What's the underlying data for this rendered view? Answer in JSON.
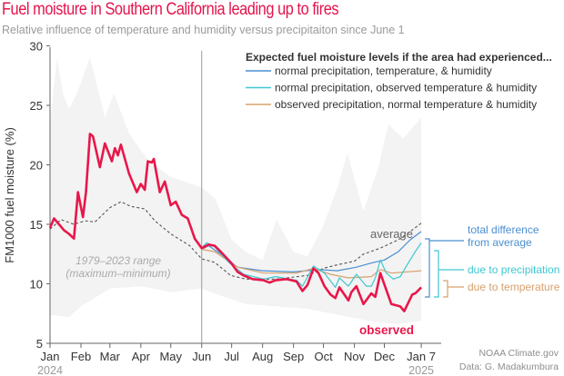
{
  "header": {
    "title": "Fuel moisture in Southern California leading up to fires",
    "subtitle": "Relative influence of temperature and humidity versus precipitaiton since June 1"
  },
  "credits": {
    "line1": "NOAA Climate.gov",
    "line2": "Data: G. Madakumbura"
  },
  "colors": {
    "observed": "#e8174a",
    "normal_all": "#4a8fd0",
    "normal_precip": "#3cc8d2",
    "normal_temp": "#d8a06c",
    "average": "#555555",
    "range": "#f3f3f3"
  },
  "chart_data": {
    "type": "line",
    "ylabel": "FM1000 fuel moisture (%)",
    "ylim": [
      5,
      30
    ],
    "yticks": [
      "5",
      "10",
      "15",
      "20",
      "25",
      "30"
    ],
    "xticks": [
      {
        "date": "2024-01-01",
        "label": "Jan"
      },
      {
        "date": "2024-02-01",
        "label": "Feb"
      },
      {
        "date": "2024-03-01",
        "label": "Mar"
      },
      {
        "date": "2024-04-01",
        "label": "Apr"
      },
      {
        "date": "2024-05-01",
        "label": "May"
      },
      {
        "date": "2024-06-01",
        "label": "Jun"
      },
      {
        "date": "2024-07-01",
        "label": "Jul"
      },
      {
        "date": "2024-08-01",
        "label": "Aug"
      },
      {
        "date": "2024-09-01",
        "label": "Sep"
      },
      {
        "date": "2024-10-01",
        "label": "Oct"
      },
      {
        "date": "2024-11-01",
        "label": "Nov"
      },
      {
        "date": "2024-12-01",
        "label": "Dec"
      },
      {
        "date": "2025-01-07",
        "label": "Jan 7"
      }
    ],
    "year_labels": {
      "start": "2024",
      "end": "2025"
    },
    "marker_date": "2024-06-01",
    "legend": {
      "title": "Expected fuel moisture levels if the area had experienced...",
      "position": "top-right",
      "items": [
        {
          "key": "normal_all",
          "label": "normal precipitation, temperature, & humidity"
        },
        {
          "key": "normal_precip",
          "label": "normal precipitation, observed temperature & humidity"
        },
        {
          "key": "normal_temp",
          "label": "observed precipitation, normal temperature & humidity"
        }
      ]
    },
    "annotations": {
      "range_label_1": "1979–2023 range",
      "range_label_2": "(maximum–minimum)",
      "average": "average",
      "observed": "observed",
      "total_1": "total difference",
      "total_2": "from average",
      "precip": "due to precipitation",
      "temp": "due to temperature"
    },
    "range": {
      "name": "1979–2023 range",
      "max": [
        [
          "2024-01-01",
          23.4
        ],
        [
          "2024-01-08",
          29
        ],
        [
          "2024-01-14",
          26
        ],
        [
          "2024-01-20",
          24.7
        ],
        [
          "2024-01-28",
          26
        ],
        [
          "2024-02-10",
          29
        ],
        [
          "2024-02-25",
          24
        ],
        [
          "2024-03-05",
          26
        ],
        [
          "2024-03-20",
          22.7
        ],
        [
          "2024-04-01",
          21.2
        ],
        [
          "2024-04-10",
          20.3
        ],
        [
          "2024-05-01",
          19
        ],
        [
          "2024-06-01",
          18.1
        ],
        [
          "2024-06-15",
          17.1
        ],
        [
          "2024-07-01",
          13.7
        ],
        [
          "2024-07-15",
          12.7
        ],
        [
          "2024-08-01",
          12
        ],
        [
          "2024-08-15",
          15.4
        ],
        [
          "2024-09-01",
          12.7
        ],
        [
          "2024-09-15",
          12.3
        ],
        [
          "2024-10-01",
          14.9
        ],
        [
          "2024-10-15",
          18.1
        ],
        [
          "2024-10-25",
          21
        ],
        [
          "2024-11-10",
          16.1
        ],
        [
          "2024-11-25",
          19.8
        ],
        [
          "2024-12-05",
          23.4
        ],
        [
          "2024-12-20",
          22.2
        ],
        [
          "2025-01-07",
          24
        ]
      ],
      "min": [
        [
          "2024-01-01",
          7.4
        ],
        [
          "2024-01-20",
          7.2
        ],
        [
          "2024-02-01",
          8.1
        ],
        [
          "2024-03-01",
          9.6
        ],
        [
          "2024-04-01",
          9.8
        ],
        [
          "2024-05-01",
          9.3
        ],
        [
          "2024-06-01",
          9.6
        ],
        [
          "2024-06-20",
          9
        ],
        [
          "2024-07-15",
          8.3
        ],
        [
          "2024-08-15",
          8.1
        ],
        [
          "2024-09-15",
          7.9
        ],
        [
          "2024-10-15",
          7.4
        ],
        [
          "2024-11-15",
          6.9
        ],
        [
          "2024-12-15",
          6.6
        ],
        [
          "2025-01-07",
          6.9
        ]
      ]
    },
    "series": [
      {
        "key": "average",
        "name": "average",
        "points": [
          [
            "2024-01-01",
            14.6
          ],
          [
            "2024-01-12",
            15.4
          ],
          [
            "2024-01-25",
            15
          ],
          [
            "2024-02-05",
            15.3
          ],
          [
            "2024-02-15",
            15.2
          ],
          [
            "2024-03-01",
            16.4
          ],
          [
            "2024-03-12",
            16.9
          ],
          [
            "2024-03-22",
            16.5
          ],
          [
            "2024-04-05",
            16.3
          ],
          [
            "2024-04-15",
            15.3
          ],
          [
            "2024-05-01",
            14.2
          ],
          [
            "2024-05-20",
            13.2
          ],
          [
            "2024-06-01",
            12.1
          ],
          [
            "2024-06-14",
            11.8
          ],
          [
            "2024-06-30",
            10.7
          ],
          [
            "2024-07-15",
            10.4
          ],
          [
            "2024-08-15",
            10.4
          ],
          [
            "2024-09-15",
            10.7
          ],
          [
            "2024-10-01",
            11.3
          ],
          [
            "2024-10-15",
            11.6
          ],
          [
            "2024-11-01",
            11.9
          ],
          [
            "2024-11-10",
            12.5
          ],
          [
            "2024-11-27",
            13
          ],
          [
            "2024-12-15",
            13.7
          ],
          [
            "2024-12-27",
            14.4
          ],
          [
            "2025-01-07",
            15.1
          ]
        ]
      },
      {
        "key": "normal_all",
        "name": "normal precipitation, temperature, & humidity",
        "points": [
          [
            "2024-06-01",
            12.9
          ],
          [
            "2024-06-08",
            13.2
          ],
          [
            "2024-06-20",
            12.5
          ],
          [
            "2024-07-07",
            11.4
          ],
          [
            "2024-08-01",
            11.1
          ],
          [
            "2024-09-01",
            11
          ],
          [
            "2024-09-26",
            11.2
          ],
          [
            "2024-10-15",
            11.1
          ],
          [
            "2024-11-03",
            11.4
          ],
          [
            "2024-11-18",
            11.75
          ],
          [
            "2024-12-01",
            12
          ],
          [
            "2024-12-15",
            12.7
          ],
          [
            "2024-12-27",
            13.7
          ],
          [
            "2025-01-07",
            14.4
          ]
        ]
      },
      {
        "key": "normal_temp",
        "name": "observed precipitation, normal temperature & humidity",
        "points": [
          [
            "2024-06-01",
            12.9
          ],
          [
            "2024-06-14",
            12.7
          ],
          [
            "2024-07-07",
            11.4
          ],
          [
            "2024-08-02",
            10.9
          ],
          [
            "2024-09-04",
            10.9
          ],
          [
            "2024-09-21",
            11.3
          ],
          [
            "2024-10-08",
            10.8
          ],
          [
            "2024-10-26",
            10.5
          ],
          [
            "2024-11-18",
            10.6
          ],
          [
            "2024-11-27",
            11.2
          ],
          [
            "2024-12-08",
            10.9
          ],
          [
            "2025-01-07",
            11.1
          ]
        ]
      },
      {
        "key": "normal_precip",
        "name": "normal precipitation, observed temperature & humidity",
        "points": [
          [
            "2024-06-01",
            13
          ],
          [
            "2024-06-06",
            13.45
          ],
          [
            "2024-06-14",
            13.1
          ],
          [
            "2024-06-28",
            11.8
          ],
          [
            "2024-07-13",
            10.8
          ],
          [
            "2024-08-02",
            10.4
          ],
          [
            "2024-08-14",
            10.6
          ],
          [
            "2024-09-04",
            10.3
          ],
          [
            "2024-09-10",
            9.8
          ],
          [
            "2024-09-21",
            11.5
          ],
          [
            "2024-10-02",
            10.9
          ],
          [
            "2024-10-13",
            9.7
          ],
          [
            "2024-10-17",
            10.5
          ],
          [
            "2024-10-26",
            9.8
          ],
          [
            "2024-11-03",
            10.8
          ],
          [
            "2024-11-13",
            9.8
          ],
          [
            "2024-11-18",
            9.8
          ],
          [
            "2024-11-22",
            10.5
          ],
          [
            "2024-11-27",
            12
          ],
          [
            "2024-12-03",
            10.9
          ],
          [
            "2024-12-10",
            10.4
          ],
          [
            "2024-12-17",
            10.6
          ],
          [
            "2024-12-25",
            11.75
          ],
          [
            "2025-01-01",
            12.7
          ],
          [
            "2025-01-07",
            13.45
          ]
        ]
      },
      {
        "key": "observed",
        "name": "observed",
        "points": [
          [
            "2024-01-01",
            14.7
          ],
          [
            "2024-01-05",
            15.5
          ],
          [
            "2024-01-10",
            15
          ],
          [
            "2024-01-15",
            14.5
          ],
          [
            "2024-01-20",
            14.2
          ],
          [
            "2024-01-25",
            13.8
          ],
          [
            "2024-01-29",
            17.7
          ],
          [
            "2024-02-03",
            15.6
          ],
          [
            "2024-02-06",
            17.7
          ],
          [
            "2024-02-10",
            22.6
          ],
          [
            "2024-02-13",
            22.4
          ],
          [
            "2024-02-20",
            19.8
          ],
          [
            "2024-02-25",
            21.8
          ],
          [
            "2024-03-03",
            20.3
          ],
          [
            "2024-03-06",
            21.4
          ],
          [
            "2024-03-09",
            20.8
          ],
          [
            "2024-03-12",
            21.7
          ],
          [
            "2024-03-20",
            19.3
          ],
          [
            "2024-03-28",
            17.7
          ],
          [
            "2024-04-01",
            18.4
          ],
          [
            "2024-04-05",
            17.9
          ],
          [
            "2024-04-08",
            20.3
          ],
          [
            "2024-04-12",
            20.2
          ],
          [
            "2024-04-14",
            20.5
          ],
          [
            "2024-04-20",
            17.7
          ],
          [
            "2024-04-25",
            18.6
          ],
          [
            "2024-05-01",
            16.6
          ],
          [
            "2024-05-06",
            16.9
          ],
          [
            "2024-05-12",
            15.8
          ],
          [
            "2024-05-18",
            15.5
          ],
          [
            "2024-05-25",
            13.8
          ],
          [
            "2024-06-01",
            13
          ],
          [
            "2024-06-08",
            13.3
          ],
          [
            "2024-06-14",
            13.2
          ],
          [
            "2024-06-20",
            12.7
          ],
          [
            "2024-06-30",
            11.8
          ],
          [
            "2024-07-07",
            11
          ],
          [
            "2024-07-13",
            10.7
          ],
          [
            "2024-07-22",
            10.4
          ],
          [
            "2024-08-02",
            10.3
          ],
          [
            "2024-08-08",
            10.1
          ],
          [
            "2024-08-14",
            10.3
          ],
          [
            "2024-08-25",
            10.4
          ],
          [
            "2024-09-04",
            10.2
          ],
          [
            "2024-09-10",
            9.4
          ],
          [
            "2024-09-15",
            9.9
          ],
          [
            "2024-09-21",
            11.3
          ],
          [
            "2024-09-26",
            10.9
          ],
          [
            "2024-10-02",
            9.8
          ],
          [
            "2024-10-08",
            9.1
          ],
          [
            "2024-10-13",
            8.8
          ],
          [
            "2024-10-17",
            9.7
          ],
          [
            "2024-10-26",
            8.6
          ],
          [
            "2024-10-29",
            9.3
          ],
          [
            "2024-11-03",
            9.8
          ],
          [
            "2024-11-10",
            8.3
          ],
          [
            "2024-11-18",
            9.2
          ],
          [
            "2024-11-22",
            8.9
          ],
          [
            "2024-11-27",
            10.9
          ],
          [
            "2024-12-08",
            8.3
          ],
          [
            "2024-12-17",
            8.1
          ],
          [
            "2024-12-21",
            7.7
          ],
          [
            "2024-12-29",
            9.1
          ],
          [
            "2025-01-01",
            9.2
          ],
          [
            "2025-01-07",
            9.7
          ]
        ]
      }
    ]
  }
}
